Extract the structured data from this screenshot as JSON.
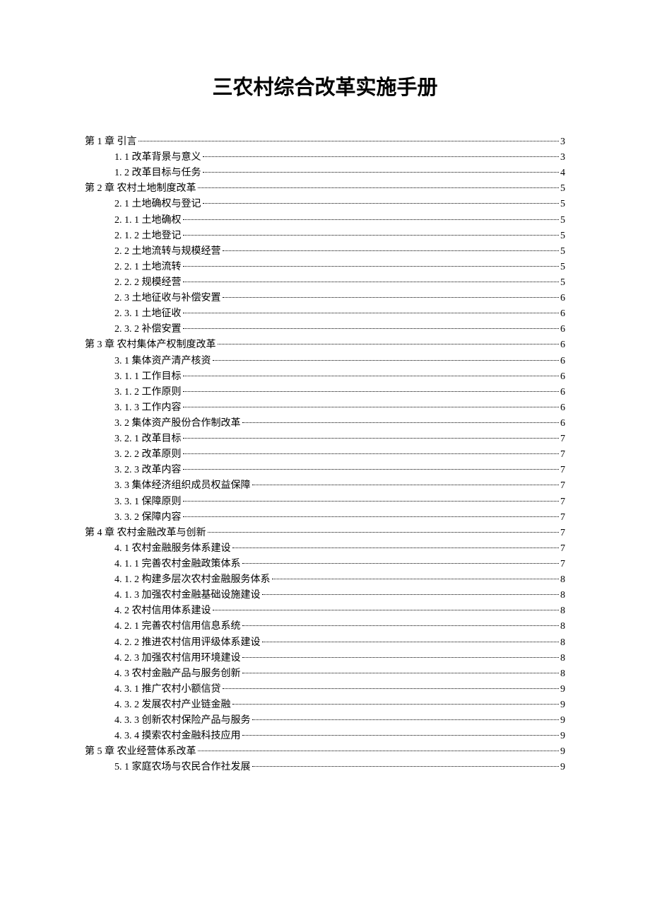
{
  "title": "三农村综合改革实施手册",
  "toc": [
    {
      "label": "第 1 章  引言 ",
      "page": "3",
      "indent": 0
    },
    {
      "label": "1. 1  改革背景与意义",
      "page": "3",
      "indent": 1
    },
    {
      "label": "1. 2  改革目标与任务",
      "page": "4",
      "indent": 1
    },
    {
      "label": "第 2 章  农村土地制度改革",
      "page": "5",
      "indent": 0
    },
    {
      "label": "2. 1  土地确权与登记",
      "page": "5",
      "indent": 1
    },
    {
      "label": "2. 1. 1  土地确权",
      "page": "5",
      "indent": 1
    },
    {
      "label": "2. 1. 2  土地登记",
      "page": "5",
      "indent": 1
    },
    {
      "label": "2. 2  土地流转与规模经营",
      "page": "5",
      "indent": 1
    },
    {
      "label": "2. 2. 1  土地流转",
      "page": "5",
      "indent": 1
    },
    {
      "label": "2. 2. 2  规模经营",
      "page": "5",
      "indent": 1
    },
    {
      "label": "2. 3  土地征收与补偿安置",
      "page": "6",
      "indent": 1
    },
    {
      "label": "2. 3. 1  土地征收",
      "page": "6",
      "indent": 1
    },
    {
      "label": "2. 3. 2  补偿安置",
      "page": "6",
      "indent": 1
    },
    {
      "label": "第 3 章  农村集体产权制度改革",
      "page": "6",
      "indent": 0
    },
    {
      "label": "3. 1  集体资产清产核资",
      "page": "6",
      "indent": 1
    },
    {
      "label": "3. 1. 1  工作目标",
      "page": "6",
      "indent": 1
    },
    {
      "label": "3. 1. 2  工作原则",
      "page": "6",
      "indent": 1
    },
    {
      "label": "3. 1. 3  工作内容",
      "page": "6",
      "indent": 1
    },
    {
      "label": "3. 2  集体资产股份合作制改革",
      "page": "6",
      "indent": 1
    },
    {
      "label": "3. 2. 1  改革目标",
      "page": "7",
      "indent": 1
    },
    {
      "label": "3. 2. 2  改革原则",
      "page": "7",
      "indent": 1
    },
    {
      "label": "3. 2. 3  改革内容",
      "page": "7",
      "indent": 1
    },
    {
      "label": "3. 3  集体经济组织成员权益保障",
      "page": "7",
      "indent": 1
    },
    {
      "label": "3. 3. 1  保障原则",
      "page": "7",
      "indent": 1
    },
    {
      "label": "3. 3. 2  保障内容",
      "page": "7",
      "indent": 1
    },
    {
      "label": "第 4 章  农村金融改革与创新",
      "page": "7",
      "indent": 0
    },
    {
      "label": "4. 1  农村金融服务体系建设",
      "page": "7",
      "indent": 1
    },
    {
      "label": "4. 1. 1  完善农村金融政策体系",
      "page": "7",
      "indent": 1
    },
    {
      "label": "4. 1. 2  构建多层次农村金融服务体系",
      "page": "8",
      "indent": 1
    },
    {
      "label": "4. 1. 3  加强农村金融基础设施建设",
      "page": "8",
      "indent": 1
    },
    {
      "label": "4. 2  农村信用体系建设",
      "page": "8",
      "indent": 1
    },
    {
      "label": "4. 2. 1  完善农村信用信息系统",
      "page": "8",
      "indent": 1
    },
    {
      "label": "4. 2. 2  推进农村信用评级体系建设",
      "page": "8",
      "indent": 1
    },
    {
      "label": "4. 2. 3  加强农村信用环境建设",
      "page": "8",
      "indent": 1
    },
    {
      "label": "4. 3  农村金融产品与服务创新",
      "page": "8",
      "indent": 1
    },
    {
      "label": "4. 3. 1  推广农村小额信贷",
      "page": "9",
      "indent": 1
    },
    {
      "label": "4. 3. 2  发展农村产业链金融",
      "page": "9",
      "indent": 1
    },
    {
      "label": "4. 3. 3  创新农村保险产品与服务",
      "page": "9",
      "indent": 1
    },
    {
      "label": "4. 3. 4  摸索农村金融科技应用",
      "page": "9",
      "indent": 1
    },
    {
      "label": "第 5 章  农业经营体系改革",
      "page": "9",
      "indent": 0
    },
    {
      "label": "5. 1  家庭农场与农民合作社发展",
      "page": "9",
      "indent": 1
    }
  ]
}
